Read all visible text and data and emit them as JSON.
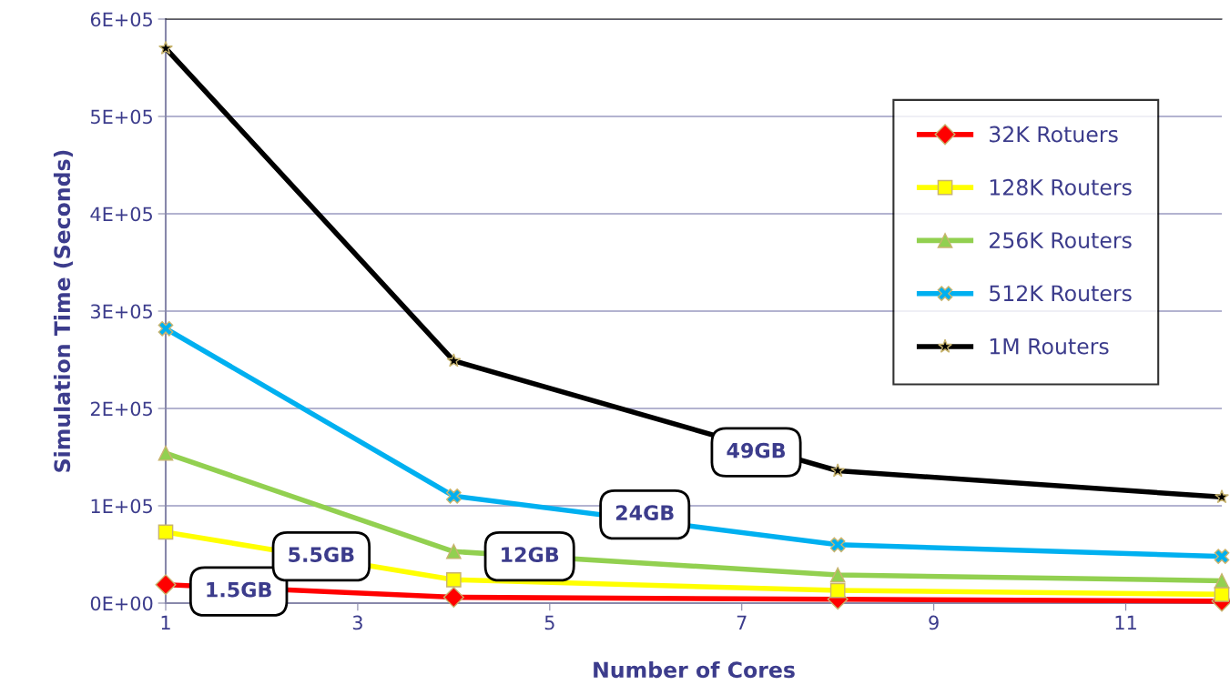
{
  "chart_data": {
    "type": "line",
    "xlabel": "Number of Cores",
    "ylabel": "Simulation Time (Seconds)",
    "x": [
      1,
      4,
      8,
      12
    ],
    "series": [
      {
        "name": "32K Rotuers",
        "color": "#ff0000",
        "marker": "diamond",
        "values": [
          19000,
          6000,
          4000,
          2000
        ]
      },
      {
        "name": "128K Routers",
        "color": "#ffff00",
        "marker": "square",
        "values": [
          73000,
          24000,
          13000,
          9000
        ]
      },
      {
        "name": "256K Routers",
        "color": "#92d050",
        "marker": "triangle",
        "values": [
          154000,
          53000,
          29000,
          23000
        ]
      },
      {
        "name": "512K Routers",
        "color": "#00b0f0",
        "marker": "cross",
        "values": [
          282000,
          110000,
          60000,
          48000
        ]
      },
      {
        "name": "1M Routers",
        "color": "#000000",
        "marker": "star",
        "values": [
          570000,
          249000,
          136000,
          109000
        ]
      }
    ],
    "xlim": [
      1,
      12
    ],
    "xticks": [
      1,
      3,
      5,
      7,
      9,
      11
    ],
    "ylim": [
      0,
      600000
    ],
    "yticks": [
      {
        "value": 0,
        "label": "0E+00"
      },
      {
        "value": 100000,
        "label": "1E+05"
      },
      {
        "value": 200000,
        "label": "2E+05"
      },
      {
        "value": 300000,
        "label": "3E+05"
      },
      {
        "value": 400000,
        "label": "4E+05"
      },
      {
        "value": 500000,
        "label": "5E+05"
      },
      {
        "value": 600000,
        "label": "6E+05"
      }
    ],
    "grid": "y",
    "legend": "top right",
    "annotations": [
      {
        "text": "1.5GB",
        "x": 1.76,
        "y": 12000
      },
      {
        "text": "5.5GB",
        "x": 2.62,
        "y": 48000
      },
      {
        "text": "12GB",
        "x": 4.79,
        "y": 48000
      },
      {
        "text": "24GB",
        "x": 5.99,
        "y": 91000
      },
      {
        "text": "49GB",
        "x": 7.15,
        "y": 155000
      }
    ]
  }
}
